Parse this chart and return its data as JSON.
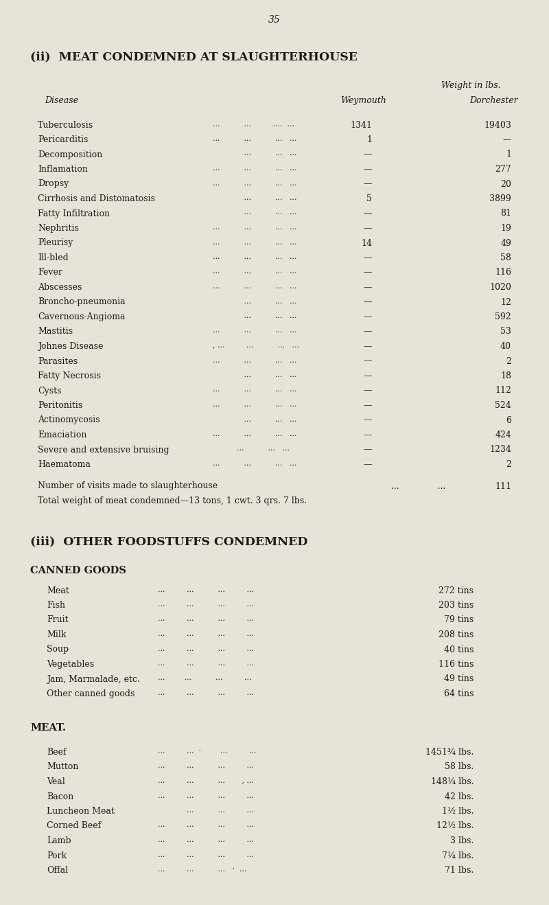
{
  "page_number": "35",
  "bg_color": "#e8e3d8",
  "text_color": "#1a1a1a",
  "section_ii_title": "(ii)  MEAT CONDEMNED AT SLAUGHTERHOUSE",
  "weight_header": "Weight in lbs.",
  "col1_header": "Disease",
  "col2_header": "Weymouth",
  "col3_header": "Dorchester",
  "slaughter_rows": [
    {
      "disease": "Tuberculosis",
      "dots": "...          ...         ....  ...",
      "weymouth": "1341",
      "dorchester": "19403"
    },
    {
      "disease": "Pericarditis",
      "dots": "...          ...          ...   ...",
      "weymouth": "1",
      "dorchester": "—"
    },
    {
      "disease": "Decomposition",
      "dots": "             ...          ...   ...",
      "weymouth": "—",
      "dorchester": "1"
    },
    {
      "disease": "Inflamation",
      "dots": "...          ...          ...   ...",
      "weymouth": "—",
      "dorchester": "277"
    },
    {
      "disease": "Dropsy",
      "dots": "...          ...          ...   ...",
      "weymouth": "—",
      "dorchester": "20"
    },
    {
      "disease": "Cirrhosis and Distomatosis",
      "dots": "             ...          ...   ...",
      "weymouth": "5",
      "dorchester": "3899"
    },
    {
      "disease": "Fatty Infiltration",
      "dots": "             ...          ...   ...",
      "weymouth": "—",
      "dorchester": "81"
    },
    {
      "disease": "Nephritis",
      "dots": "...          ...          ...   ...",
      "weymouth": "—",
      "dorchester": "19"
    },
    {
      "disease": "Pleurisy",
      "dots": "...          ...          ...   ...",
      "weymouth": "14",
      "dorchester": "49"
    },
    {
      "disease": "Ill-bled",
      "dots": "...          ...          ...   ...",
      "weymouth": "—",
      "dorchester": "58"
    },
    {
      "disease": "Fever",
      "dots": "...          ...          ...   ...",
      "weymouth": "—",
      "dorchester": "116"
    },
    {
      "disease": "Abscesses",
      "dots": "...          ...          ...   ...",
      "weymouth": "—",
      "dorchester": "1020"
    },
    {
      "disease": "Broncho-pneumonia",
      "dots": "             ...          ...   ...",
      "weymouth": "—",
      "dorchester": "12"
    },
    {
      "disease": "Cavernous-Angioma",
      "dots": "             ...          ...   ...",
      "weymouth": "—",
      "dorchester": "592"
    },
    {
      "disease": "Mastitis",
      "dots": "...          ...          ...   ...",
      "weymouth": "—",
      "dorchester": "53"
    },
    {
      "disease": "Johnes Disease",
      "dots": ", ...         ...          ...   ...",
      "weymouth": "—",
      "dorchester": "40"
    },
    {
      "disease": "Parasites",
      "dots": "...          ...          ...   ...",
      "weymouth": "—",
      "dorchester": "2"
    },
    {
      "disease": "Fatty Necrosis",
      "dots": "             ...          ...   ...",
      "weymouth": "—",
      "dorchester": "18"
    },
    {
      "disease": "Cysts",
      "dots": "...          ...          ...   ...",
      "weymouth": "—",
      "dorchester": "112"
    },
    {
      "disease": "Peritonitis",
      "dots": "...          ...          ...   ...",
      "weymouth": "—",
      "dorchester": "524"
    },
    {
      "disease": "Actinomycosis",
      "dots": "             ...          ...   ...",
      "weymouth": "—",
      "dorchester": "6"
    },
    {
      "disease": "Emaciation",
      "dots": "...          ...          ...   ...",
      "weymouth": "—",
      "dorchester": "424"
    },
    {
      "disease": "Severe and extensive bruising",
      "dots": "          ...          ...   ...",
      "weymouth": "—",
      "dorchester": "1234"
    },
    {
      "disease": "Haematoma",
      "dots": "...          ...          ...   ...",
      "weymouth": "—",
      "dorchester": "2"
    }
  ],
  "visits_label": "Number of visits made to slaughterhouse",
  "visits_dots": "...              ...",
  "visits_value": "111",
  "total_label": "Total weight of meat condemned—13 tons, 1 cwt. 3 qrs. 7 lbs.",
  "section_iii_title": "(iii)  OTHER FOODSTUFFS CONDEMNED",
  "canned_title": "CANNED GOODS",
  "canned_rows": [
    {
      "item": "Meat",
      "dots": "...         ...          ...         ...",
      "value": "272 tins"
    },
    {
      "item": "Fish",
      "dots": "...         ...          ...         ...",
      "value": "203 tins"
    },
    {
      "item": "Fruit",
      "dots": "...         ...          ...         ...",
      "value": "79 tins"
    },
    {
      "item": "Milk",
      "dots": "...         ...          ...         ...",
      "value": "208 tins"
    },
    {
      "item": "Soup",
      "dots": "...         ...          ...         ...",
      "value": "40 tins"
    },
    {
      "item": "Vegetables",
      "dots": "...         ...          ...         ...",
      "value": "116 tins"
    },
    {
      "item": "Jam, Marmalade, etc.",
      "dots": "...        ...          ...         ...",
      "value": "49 tins"
    },
    {
      "item": "Other canned goods",
      "dots": "...         ...          ...         ...",
      "value": "64 tins"
    }
  ],
  "meat_title": "MEAT.",
  "meat_rows": [
    {
      "item": "Beef",
      "dots": "...         ...  ·        ...         ...",
      "value": "1451¾ lbs."
    },
    {
      "item": "Mutton",
      "dots": "...         ...          ...         ...",
      "value": "58 lbs."
    },
    {
      "item": "Veal",
      "dots": "...         ...          ...       , ...",
      "value": "148¼ lbs."
    },
    {
      "item": "Bacon",
      "dots": "...         ...          ...         ...",
      "value": "42 lbs."
    },
    {
      "item": "Luncheon Meat",
      "dots": "            ...          ...         ...",
      "value": "1½ lbs."
    },
    {
      "item": "Corned Beef",
      "dots": "...         ...          ...         ...",
      "value": "12½ lbs."
    },
    {
      "item": "Lamb",
      "dots": "...         ...          ...         ...",
      "value": "3 lbs."
    },
    {
      "item": "Pork",
      "dots": "...         ...          ...         ...",
      "value": "7¼ lbs."
    },
    {
      "item": "Offal",
      "dots": "...         ...          ...   ·  ...",
      "value": "71 lbs."
    }
  ]
}
